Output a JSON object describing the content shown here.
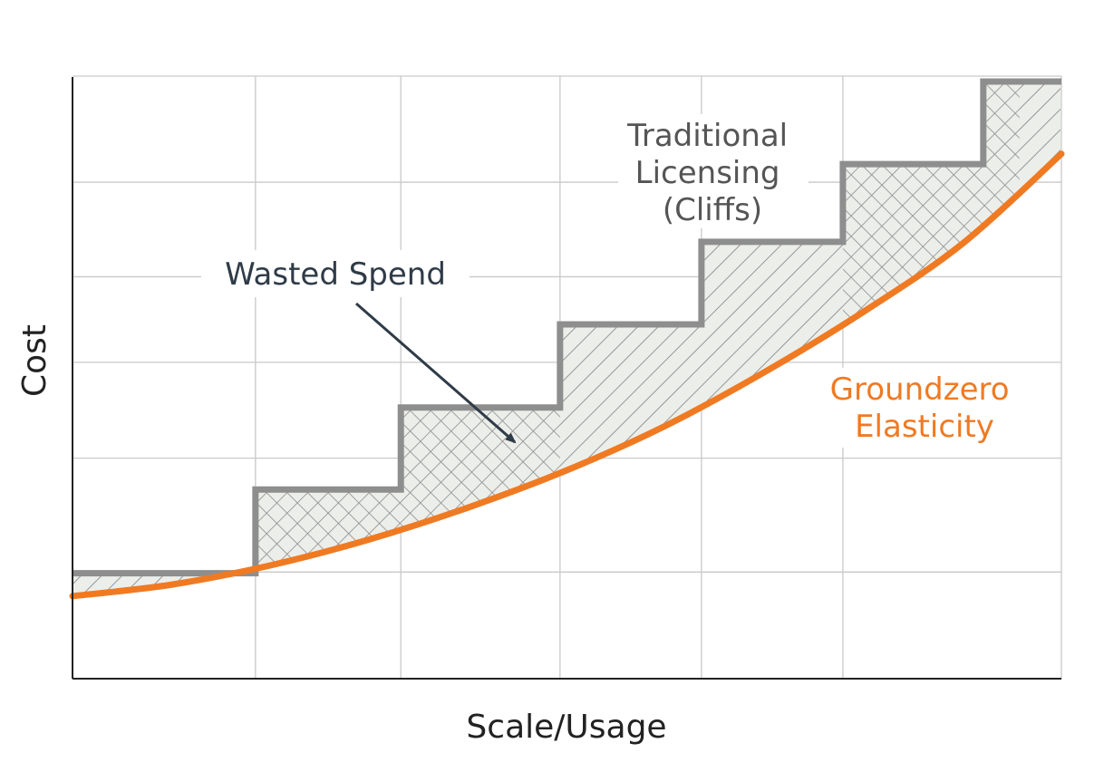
{
  "chart_data": {
    "type": "line",
    "xlabel": "Scale/Usage",
    "ylabel": "Cost",
    "xlim": [
      0,
      100
    ],
    "ylim": [
      0,
      100
    ],
    "grid": true,
    "x_gridlines": [
      18.5,
      33.2,
      49.3,
      63.6,
      77.9
    ],
    "y_gridlines": [
      17.7,
      36.6,
      52.5,
      66.7,
      82.4
    ],
    "series": [
      {
        "name": "Traditional Licensing (Cliffs)",
        "kind": "step",
        "color": "#8e8e8e",
        "steps": [
          {
            "x0": 0,
            "x1": 18.5,
            "y": 17.5
          },
          {
            "x0": 18.5,
            "x1": 33.2,
            "y": 31.4
          },
          {
            "x0": 33.2,
            "x1": 49.3,
            "y": 45.0
          },
          {
            "x0": 49.3,
            "x1": 63.6,
            "y": 58.8
          },
          {
            "x0": 63.6,
            "x1": 77.9,
            "y": 72.5
          },
          {
            "x0": 77.9,
            "x1": 92.1,
            "y": 85.4
          },
          {
            "x0": 92.1,
            "x1": 100,
            "y": 99.1
          }
        ]
      },
      {
        "name": "Groundzero Elasticity",
        "kind": "curve",
        "color": "#f07a22",
        "x": [
          0,
          10,
          20,
          30,
          40,
          50,
          60,
          70,
          80,
          90,
          100
        ],
        "y": [
          13.7,
          15.6,
          18.8,
          23.1,
          28.4,
          34.6,
          42.0,
          50.9,
          60.9,
          72.2,
          87.1
        ]
      }
    ],
    "annotations": [
      {
        "text": "Wasted Spend",
        "color": "#2f3b47"
      },
      {
        "text_lines": [
          "Traditional",
          "Licensing",
          "(Cliffs)"
        ],
        "color": "#555555"
      },
      {
        "text_lines": [
          "Groundzero",
          "Elasticity"
        ],
        "color": "#f07a22"
      }
    ]
  }
}
